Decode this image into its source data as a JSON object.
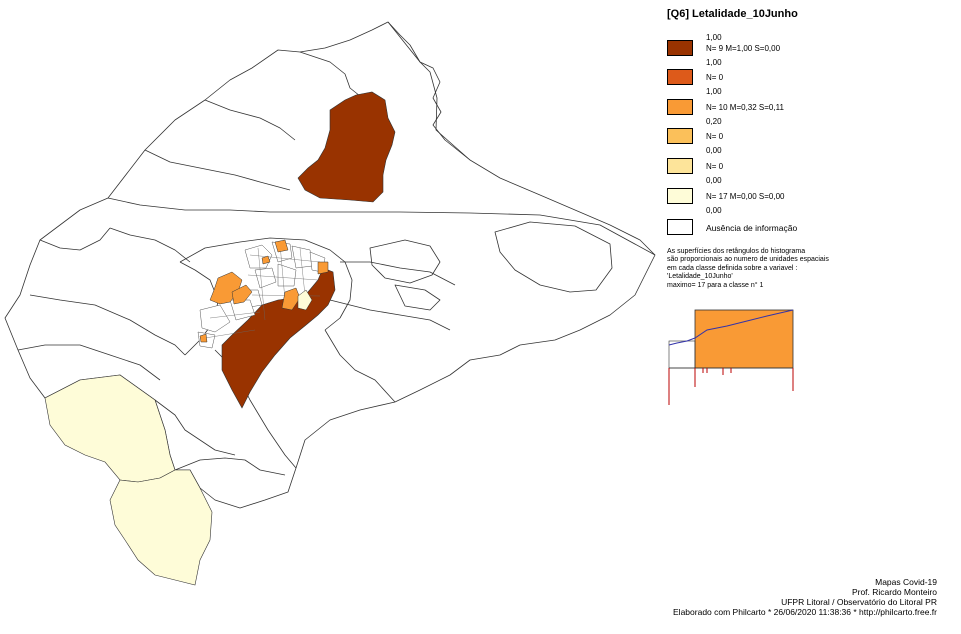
{
  "legend": {
    "title": "[Q6] Letalidade_10Junho",
    "classes": [
      {
        "upper": "1,00",
        "stat": "N= 9  M=1,00  S=0,00",
        "color": "#993300"
      },
      {
        "upper": "1,00",
        "stat": "N= 0",
        "color": "#dd5a1a"
      },
      {
        "upper": "1,00",
        "stat": "N= 10  M=0,32  S=0,11",
        "color": "#f99a35"
      },
      {
        "upper": "0,20",
        "stat": "N= 0",
        "color": "#fbc05a"
      },
      {
        "upper": "0,00",
        "stat": "N= 0",
        "color": "#fde49a"
      },
      {
        "upper": "0,00",
        "stat": "N= 17  M=0,00  S=0,00",
        "color": "#fefcd8"
      }
    ],
    "lower": "0,00",
    "absent_label": "Ausência de informação",
    "absent_color": "#ffffff"
  },
  "note": {
    "line1": "As superfícies dos retângulos do histograma",
    "line2": "são proporcionais ao numero de unidades espaciais",
    "line3": "em cada classe definida sobre a variavel :",
    "line4": "'Letalidade_10Junho'",
    "line5": "maximo= 17 para a classe n° 1"
  },
  "credits": {
    "line1": "Mapas Covid-19",
    "line2": "Prof. Ricardo Monteiro",
    "line3": "UFPR Litoral / Observatório do Litoral PR",
    "line4": "Elaborado com Philcarto * 26/06/2020 11:38:36 * http://philcarto.free.fr"
  },
  "colors": {
    "boundary": "#333333",
    "dark_brown": "#993300",
    "orange": "#f99a35",
    "light_yellow": "#fefcd8",
    "hist_line": "#3333aa",
    "hist_ticks": "#bb0000"
  }
}
